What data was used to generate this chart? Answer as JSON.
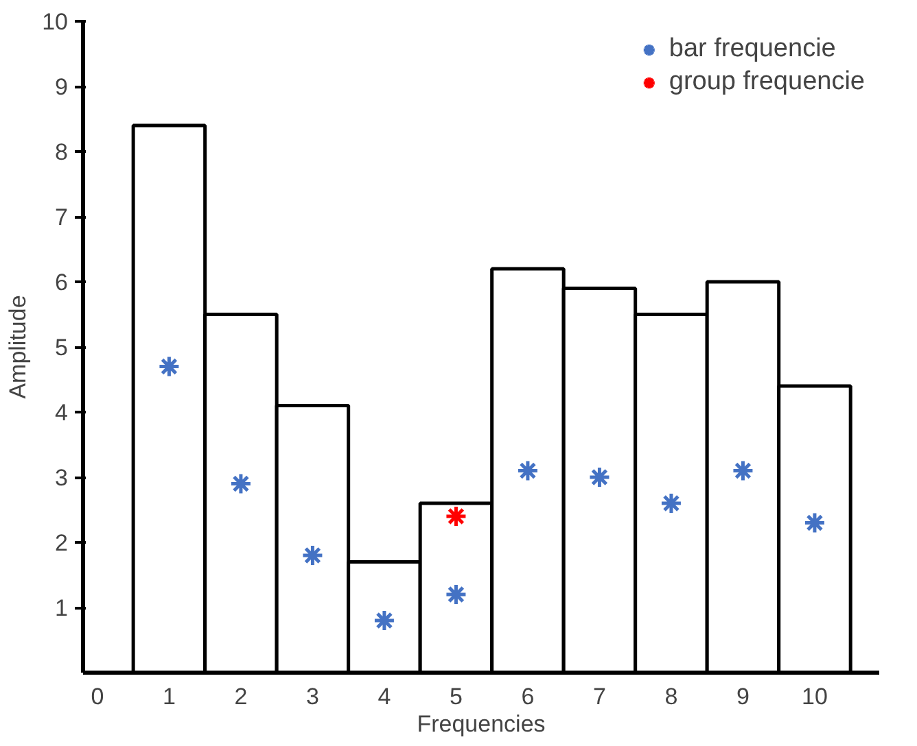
{
  "chart_data": {
    "type": "bar",
    "xlabel": "Frequencies",
    "ylabel": "Amplitude",
    "x": [
      1,
      2,
      3,
      4,
      5,
      6,
      7,
      8,
      9,
      10
    ],
    "xlim": [
      -0.2,
      10.9
    ],
    "xticks": [
      0,
      1,
      2,
      3,
      4,
      5,
      6,
      7,
      8,
      9,
      10
    ],
    "ylim": [
      0,
      10
    ],
    "yticks": [
      1,
      2,
      3,
      4,
      5,
      6,
      7,
      8,
      9,
      10
    ],
    "grid": false,
    "legend": "top right",
    "marker": "cross",
    "series": [
      {
        "color": "#ffffff",
        "values": [
          8.4,
          5.5,
          4.1,
          1.7,
          2.6,
          6.2,
          5.9,
          5.5,
          6.0,
          4.4
        ]
      },
      {
        "type": "scatter",
        "name": "bar frequencie",
        "color": "#4472c4",
        "values": [
          4.7,
          2.9,
          1.8,
          0.8,
          1.2,
          3.1,
          3.0,
          2.6,
          3.1,
          2.3
        ]
      },
      {
        "type": "scatter",
        "name": "group frequencie",
        "color": "#ff0000",
        "x": [
          5
        ],
        "values": [
          2.4
        ]
      }
    ]
  }
}
